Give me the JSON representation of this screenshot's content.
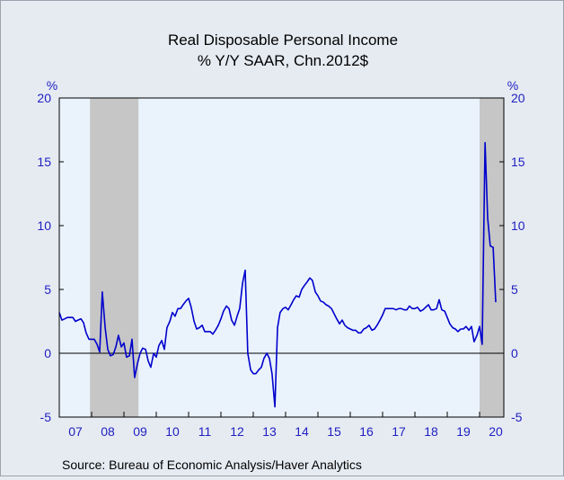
{
  "chart_data": {
    "type": "line",
    "title": "Real Disposable Personal Income",
    "subtitle": "% Y/Y   SAAR, Chn.2012$",
    "ylabel_left": "%",
    "ylabel_right": "%",
    "xlabel": "",
    "ylim": [
      -5,
      20
    ],
    "y_ticks": [
      -5,
      0,
      5,
      10,
      15,
      20
    ],
    "x_tick_labels": [
      "07",
      "08",
      "09",
      "10",
      "11",
      "12",
      "13",
      "14",
      "15",
      "16",
      "17",
      "18",
      "19",
      "20"
    ],
    "xlim": [
      2007.0,
      2020.75
    ],
    "recession_periods": [
      [
        2007.95,
        2009.45
      ],
      [
        2020.0,
        2020.75
      ]
    ],
    "grid": false,
    "zero_line": true,
    "series": [
      {
        "color": "#0000cc",
        "x": [
          2007.0,
          2007.08,
          2007.17,
          2007.25,
          2007.33,
          2007.42,
          2007.5,
          2007.58,
          2007.67,
          2007.75,
          2007.83,
          2007.92,
          2008.0,
          2008.08,
          2008.17,
          2008.25,
          2008.33,
          2008.42,
          2008.5,
          2008.58,
          2008.67,
          2008.75,
          2008.83,
          2008.92,
          2009.0,
          2009.08,
          2009.17,
          2009.25,
          2009.33,
          2009.42,
          2009.5,
          2009.58,
          2009.67,
          2009.75,
          2009.83,
          2009.92,
          2010.0,
          2010.08,
          2010.17,
          2010.25,
          2010.33,
          2010.42,
          2010.5,
          2010.58,
          2010.67,
          2010.75,
          2010.83,
          2010.92,
          2011.0,
          2011.08,
          2011.17,
          2011.25,
          2011.33,
          2011.42,
          2011.5,
          2011.58,
          2011.67,
          2011.75,
          2011.83,
          2011.92,
          2012.0,
          2012.08,
          2012.17,
          2012.25,
          2012.33,
          2012.42,
          2012.5,
          2012.58,
          2012.67,
          2012.75,
          2012.83,
          2012.92,
          2013.0,
          2013.08,
          2013.17,
          2013.25,
          2013.33,
          2013.42,
          2013.5,
          2013.58,
          2013.67,
          2013.75,
          2013.83,
          2013.92,
          2014.0,
          2014.08,
          2014.17,
          2014.25,
          2014.33,
          2014.42,
          2014.5,
          2014.58,
          2014.67,
          2014.75,
          2014.83,
          2014.92,
          2015.0,
          2015.08,
          2015.17,
          2015.25,
          2015.33,
          2015.42,
          2015.5,
          2015.58,
          2015.67,
          2015.75,
          2015.83,
          2015.92,
          2016.0,
          2016.08,
          2016.17,
          2016.25,
          2016.33,
          2016.42,
          2016.5,
          2016.58,
          2016.67,
          2016.75,
          2016.83,
          2016.92,
          2017.0,
          2017.08,
          2017.17,
          2017.25,
          2017.33,
          2017.42,
          2017.5,
          2017.58,
          2017.67,
          2017.75,
          2017.83,
          2017.92,
          2018.0,
          2018.08,
          2018.17,
          2018.25,
          2018.33,
          2018.42,
          2018.5,
          2018.58,
          2018.67,
          2018.75,
          2018.83,
          2018.92,
          2019.0,
          2019.08,
          2019.17,
          2019.25,
          2019.33,
          2019.42,
          2019.5,
          2019.58,
          2019.67,
          2019.75,
          2019.83,
          2019.92,
          2020.0,
          2020.08,
          2020.17,
          2020.25,
          2020.33,
          2020.42,
          2020.5
        ],
        "values": [
          3.2,
          2.6,
          2.7,
          2.8,
          2.8,
          2.8,
          2.5,
          2.6,
          2.7,
          2.4,
          1.6,
          1.1,
          1.1,
          1.1,
          0.7,
          0.1,
          4.8,
          2.0,
          0.3,
          -0.2,
          -0.1,
          0.5,
          1.4,
          0.5,
          0.8,
          -0.3,
          -0.2,
          1.1,
          -1.9,
          -0.8,
          0.0,
          0.4,
          0.3,
          -0.6,
          -1.1,
          0.0,
          -0.3,
          0.6,
          1.0,
          0.3,
          2.0,
          2.5,
          3.2,
          2.9,
          3.5,
          3.5,
          3.8,
          4.1,
          4.3,
          3.6,
          2.5,
          1.9,
          2.0,
          2.2,
          1.7,
          1.7,
          1.7,
          1.5,
          1.8,
          2.2,
          2.7,
          3.3,
          3.7,
          3.5,
          2.6,
          2.2,
          2.9,
          3.5,
          5.5,
          6.5,
          0.0,
          -1.3,
          -1.6,
          -1.6,
          -1.3,
          -1.1,
          -0.4,
          0.0,
          -0.4,
          -1.6,
          -4.2,
          2.0,
          3.2,
          3.5,
          3.6,
          3.4,
          3.8,
          4.2,
          4.5,
          4.4,
          5.0,
          5.3,
          5.6,
          5.9,
          5.7,
          4.8,
          4.5,
          4.1,
          4.0,
          3.8,
          3.7,
          3.5,
          3.1,
          2.7,
          2.3,
          2.6,
          2.2,
          2.0,
          1.9,
          1.8,
          1.8,
          1.6,
          1.6,
          1.9,
          2.0,
          2.2,
          1.8,
          1.9,
          2.2,
          2.6,
          3.0,
          3.5,
          3.5,
          3.5,
          3.5,
          3.4,
          3.5,
          3.5,
          3.4,
          3.4,
          3.7,
          3.5,
          3.5,
          3.6,
          3.3,
          3.4,
          3.6,
          3.8,
          3.4,
          3.4,
          3.5,
          4.2,
          3.4,
          3.3,
          2.8,
          2.3,
          2.0,
          1.9,
          1.7,
          1.9,
          1.9,
          2.1,
          1.8,
          2.1,
          0.9,
          1.4,
          2.1,
          0.7,
          16.5,
          10.6,
          8.4,
          8.3,
          4.0
        ]
      }
    ],
    "source": "Source:  Bureau of Economic Analysis/Haver Analytics"
  },
  "colors": {
    "background": "#e6ebf2",
    "plot_background": "#eaf3fc",
    "recession": "#c6c6c6",
    "line": "#0000cc",
    "axis_text": "#2020c0"
  }
}
